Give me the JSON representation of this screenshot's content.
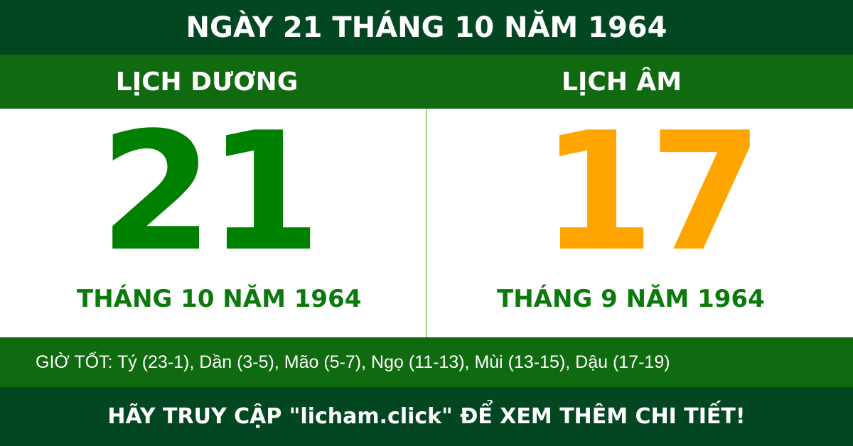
{
  "title": "NGÀY 21 THÁNG 10 NĂM 1964",
  "solar": {
    "heading": "LỊCH DƯƠNG",
    "day": "21",
    "month_year": "THÁNG 10 NĂM 1964",
    "color": "#008000"
  },
  "lunar": {
    "heading": "LỊCH ÂM",
    "day": "17",
    "month_year": "THÁNG 9 NĂM 1964",
    "color": "#FFA500"
  },
  "good_hours": "GIỜ TỐT: Tý (23-1), Dần (3-5), Mão (5-7), Ngọ (11-13), Mùi (13-15), Dậu (17-19)",
  "footer": "HÃY TRUY CẬP \"licham.click\" ĐỂ XEM THÊM CHI TIẾT!"
}
